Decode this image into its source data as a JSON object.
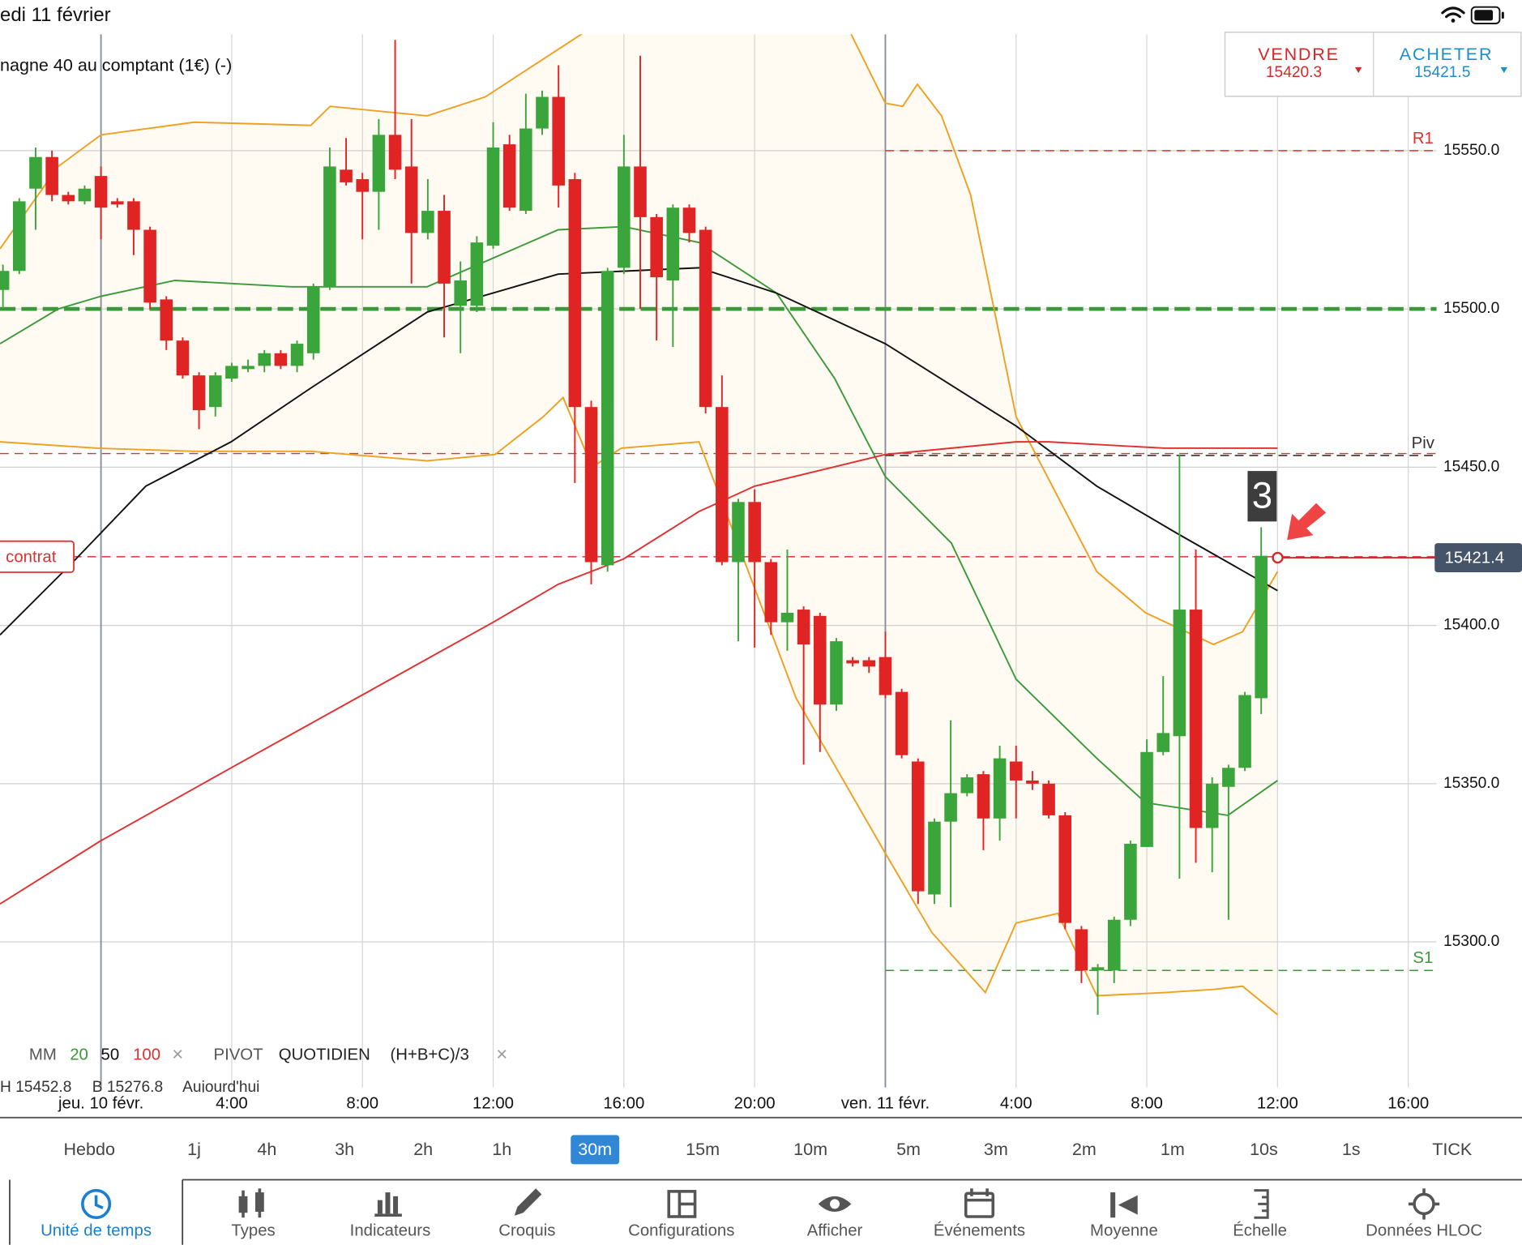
{
  "status_bar": {
    "date": "edi 11 février"
  },
  "instrument": {
    "title": "nagne 40 au comptant (1€) (-)"
  },
  "trade": {
    "sell": {
      "label": "VENDRE",
      "price": "15420.3"
    },
    "buy": {
      "label": "ACHETER",
      "price": "15421.5"
    }
  },
  "chart_data": {
    "type": "candlestick",
    "x": [
      -3,
      -2.5,
      -2,
      -1.5,
      -1,
      -0.5,
      0,
      0.5,
      1,
      1.5,
      2,
      2.5,
      3,
      3.5,
      4,
      4.5,
      5,
      5.5,
      6,
      6.5,
      7,
      7.5,
      8,
      8.5,
      9,
      9.5,
      10,
      10.5,
      11,
      11.5,
      12,
      12.5,
      13,
      13.5,
      14,
      14.5,
      15,
      15.5,
      16,
      16.5,
      17,
      17.5,
      18,
      18.5,
      19,
      19.5,
      20,
      20.5,
      21,
      21.5,
      22,
      22.5,
      23,
      23.5,
      24,
      24.5,
      25,
      25.5,
      26,
      26.5,
      27,
      27.5,
      28,
      28.5,
      29,
      29.5,
      30,
      30.5,
      31,
      31.5,
      32,
      32.5,
      33,
      33.5,
      34,
      34.5,
      35,
      35.5
    ],
    "open": [
      15506,
      15512,
      15538,
      15548,
      15536,
      15534,
      15542,
      15534,
      15534,
      15525,
      15503,
      15490,
      15479,
      15469,
      15478,
      15481,
      15482,
      15486,
      15482,
      15486,
      15507,
      15544,
      15541,
      15537,
      15555,
      15545,
      15524,
      15531,
      15501,
      15501,
      15520,
      15552,
      15531,
      15557,
      15567,
      15541,
      15469,
      15419,
      15513,
      15545,
      15529,
      15509,
      15532,
      15525,
      15469,
      15420,
      15439,
      15420,
      15401,
      15405,
      15403,
      15375,
      15389,
      15389,
      15390,
      15379,
      15357,
      15315,
      15338,
      15347,
      15353,
      15339,
      15357,
      15351,
      15350,
      15340,
      15304,
      15291,
      15291,
      15307,
      15330,
      15360,
      15365,
      15405,
      15336,
      15349,
      15355,
      15377
    ],
    "high": [
      15514,
      15535,
      15551,
      15550,
      15537,
      15539,
      15545,
      15535,
      15535,
      15526,
      15504,
      15491,
      15480,
      15480,
      15483,
      15484,
      15487,
      15487,
      15490,
      15508,
      15551,
      15554,
      15543,
      15560,
      15585,
      15560,
      15541,
      15536,
      15515,
      15523,
      15559,
      15555,
      15568,
      15569,
      15577,
      15543,
      15471,
      15513,
      15555,
      15580,
      15530,
      15533,
      15533,
      15526,
      15479,
      15440,
      15443,
      15421,
      15424,
      15406,
      15404,
      15396,
      15390,
      15390,
      15398,
      15380,
      15358,
      15339,
      15370,
      15353,
      15354,
      15362,
      15362,
      15354,
      15351,
      15341,
      15305,
      15293,
      15308,
      15332,
      15364,
      15384,
      15454,
      15424,
      15352,
      15356,
      15379,
      15431
    ],
    "low": [
      15500,
      15511,
      15525,
      15534,
      15533,
      15533,
      15522,
      15532,
      15517,
      15500,
      15487,
      15478,
      15462,
      15466,
      15477,
      15480,
      15480,
      15481,
      15480,
      15484,
      15506,
      15539,
      15522,
      15525,
      15541,
      15508,
      15522,
      15491,
      15486,
      15499,
      15519,
      15531,
      15530,
      15555,
      15532,
      15445,
      15413,
      15417,
      15511,
      15500,
      15490,
      15488,
      15521,
      15467,
      15419,
      15395,
      15393,
      15397,
      15392,
      15356,
      15360,
      15373,
      15387,
      15385,
      15377,
      15358,
      15312,
      15312,
      15311,
      15346,
      15329,
      15332,
      15339,
      15348,
      15339,
      15304,
      15287,
      15277,
      15287,
      15305,
      15330,
      15359,
      15320,
      15325,
      15322,
      15307,
      15354,
      15372
    ],
    "close": [
      15512,
      15534,
      15548,
      15536,
      15534,
      15538,
      15532,
      15533,
      15525,
      15502,
      15490,
      15479,
      15468,
      15479,
      15482,
      15482,
      15486,
      15482,
      15489,
      15507,
      15545,
      15540,
      15537,
      15555,
      15544,
      15524,
      15531,
      15508,
      15509,
      15521,
      15551,
      15532,
      15557,
      15567,
      15539,
      15469,
      15420,
      15512,
      15545,
      15529,
      15510,
      15532,
      15524,
      15469,
      15420,
      15439,
      15420,
      15401,
      15404,
      15394,
      15375,
      15395,
      15388,
      15387,
      15378,
      15359,
      15316,
      15338,
      15347,
      15352,
      15339,
      15358,
      15351,
      15350,
      15340,
      15306,
      15291,
      15292,
      15307,
      15331,
      15360,
      15366,
      15405,
      15336,
      15350,
      15355,
      15378,
      15422
    ],
    "up_color": "#3aa53a",
    "down_color": "#e02424",
    "xlim": [
      -3.09,
      43.48
    ],
    "xticks": [
      {
        "value": 0,
        "label": "jeu. 10 févr."
      },
      {
        "value": 4,
        "label": "4:00"
      },
      {
        "value": 8,
        "label": "8:00"
      },
      {
        "value": 12,
        "label": "12:00"
      },
      {
        "value": 16,
        "label": "16:00"
      },
      {
        "value": 20,
        "label": "20:00"
      },
      {
        "value": 24,
        "label": "ven. 11 févr."
      },
      {
        "value": 28,
        "label": "4:00"
      },
      {
        "value": 32,
        "label": "8:00"
      },
      {
        "value": 36,
        "label": "12:00"
      },
      {
        "value": 40,
        "label": "16:00"
      }
    ],
    "ylim": [
      15254.0,
      15586.8
    ],
    "yticks": [
      {
        "value": 15300,
        "label": "15300.0"
      },
      {
        "value": 15350,
        "label": "15350.0"
      },
      {
        "value": 15400,
        "label": "15400.0"
      },
      {
        "value": 15450,
        "label": "15450.0"
      },
      {
        "value": 15500,
        "label": "15500.0"
      },
      {
        "value": 15550,
        "label": "15550.0"
      }
    ],
    "grid": true,
    "series": [
      {
        "name": "20",
        "color": "#3a9a3a",
        "x": [
          -3.09,
          -1.31,
          0,
          2.26,
          5.82,
          9.98,
          13.99,
          15.99,
          18.3,
          20.67,
          22.45,
          24.0,
          26.02,
          28.0,
          30.47,
          31.96,
          34.48,
          36.0
        ],
        "values": [
          15489,
          15500,
          15504,
          15509,
          15507,
          15507,
          15525,
          15526,
          15521,
          15505,
          15478,
          15447,
          15426,
          15383,
          15358,
          15344,
          15340,
          15351
        ]
      },
      {
        "name": "50",
        "color": "#111111",
        "x": [
          -3.09,
          -0.86,
          1.37,
          3.98,
          6.42,
          9.98,
          13.99,
          18.3,
          20.67,
          24.0,
          28.0,
          30.47,
          32.94,
          36.0
        ],
        "values": [
          15397,
          15420,
          15444,
          15458,
          15475,
          15499,
          15511,
          15513,
          15505,
          15489,
          15463,
          15444,
          15429,
          15411
        ]
      },
      {
        "name": "100",
        "color": "#e03030",
        "x": [
          -3.09,
          0,
          3.98,
          7.99,
          12.0,
          13.99,
          15.99,
          18.3,
          20.0,
          24.0,
          28.0,
          29.0,
          32.55,
          36.0
        ],
        "values": [
          15312,
          15332,
          15355,
          15378,
          15401,
          15413,
          15421,
          15436,
          15444,
          15454,
          15458,
          15458,
          15456,
          15456
        ]
      }
    ],
    "bands": [
      {
        "color": "#f0a020",
        "x": [
          -3.09,
          -1.31,
          0,
          2.85,
          6.42,
          7.01,
          9.98,
          11.76,
          13.54,
          14.73,
          15.33,
          22.75,
          24.0,
          24.53,
          24.98,
          25.72,
          26.61,
          28.0,
          30.47,
          31.96,
          34.04,
          34.93,
          36.0
        ],
        "values": [
          15519,
          15545,
          15555,
          15559,
          15558,
          15564,
          15561,
          15567,
          15579,
          15587,
          15591,
          15591,
          15565,
          15564,
          15571,
          15561,
          15536,
          15466,
          15417,
          15404,
          15394,
          15398,
          15417
        ]
      },
      {
        "color": "#f0a020",
        "x": [
          -3.09,
          -0.12,
          2.85,
          6.42,
          9.98,
          12.06,
          13.54,
          14.14,
          15.03,
          15.92,
          18.3,
          19.48,
          21.27,
          24.0,
          25.42,
          27.06,
          28.0,
          29.28,
          30.47,
          32.55,
          34.04,
          34.93,
          36.0
        ],
        "values": [
          15458,
          15456,
          15455,
          15455,
          15452,
          15454,
          15466,
          15472,
          15450,
          15456,
          15458,
          15426,
          15377,
          15328,
          15303,
          15284,
          15306,
          15309,
          15283,
          15284,
          15285,
          15286,
          15277
        ]
      }
    ],
    "band_fill": "#fffaf2",
    "levels": [
      {
        "value": 15500,
        "color": "#3a9a3a",
        "width": 4
      },
      {
        "value": 15454.3,
        "color": "#e03030",
        "width": 1.2
      },
      {
        "label": "contrat",
        "value": 15421.7,
        "color": "#e03030",
        "width": 1.2
      },
      {
        "label": "R1",
        "value": 15550,
        "color": "#e03030",
        "width": 1.2,
        "from": 24
      },
      {
        "label": "Piv",
        "value": 15453.7,
        "color": "#333333",
        "width": 1.4,
        "from": 24
      },
      {
        "label": "S1",
        "value": 15291,
        "color": "#3a9a3a",
        "width": 1.2,
        "from": 24
      }
    ],
    "last_price": 15421.4,
    "annotation": "3"
  },
  "indicators": {
    "mm": "MM",
    "remove": "×",
    "pivot": "PIVOT",
    "period": "QUOTIDIEN",
    "formula": "(H+B+C)/3",
    "ohlc_high": "H 15452.8",
    "ohlc_low": "B 15276.8",
    "ohlc_day": "Aujourd'hui"
  },
  "timeframes": {
    "items": [
      "Hebdo",
      "1j",
      "4h",
      "3h",
      "2h",
      "1h",
      "30m",
      "15m",
      "10m",
      "5m",
      "3m",
      "2m",
      "1m",
      "10s",
      "1s",
      "TICK"
    ],
    "selected": "30m"
  },
  "toolbar": {
    "items": [
      "Unité de temps",
      "Types",
      "Indicateurs",
      "Croquis",
      "Configurations",
      "Afficher",
      "Événements",
      "Moyenne",
      "Échelle",
      "Données HLOC"
    ],
    "active": "Unité de temps"
  }
}
